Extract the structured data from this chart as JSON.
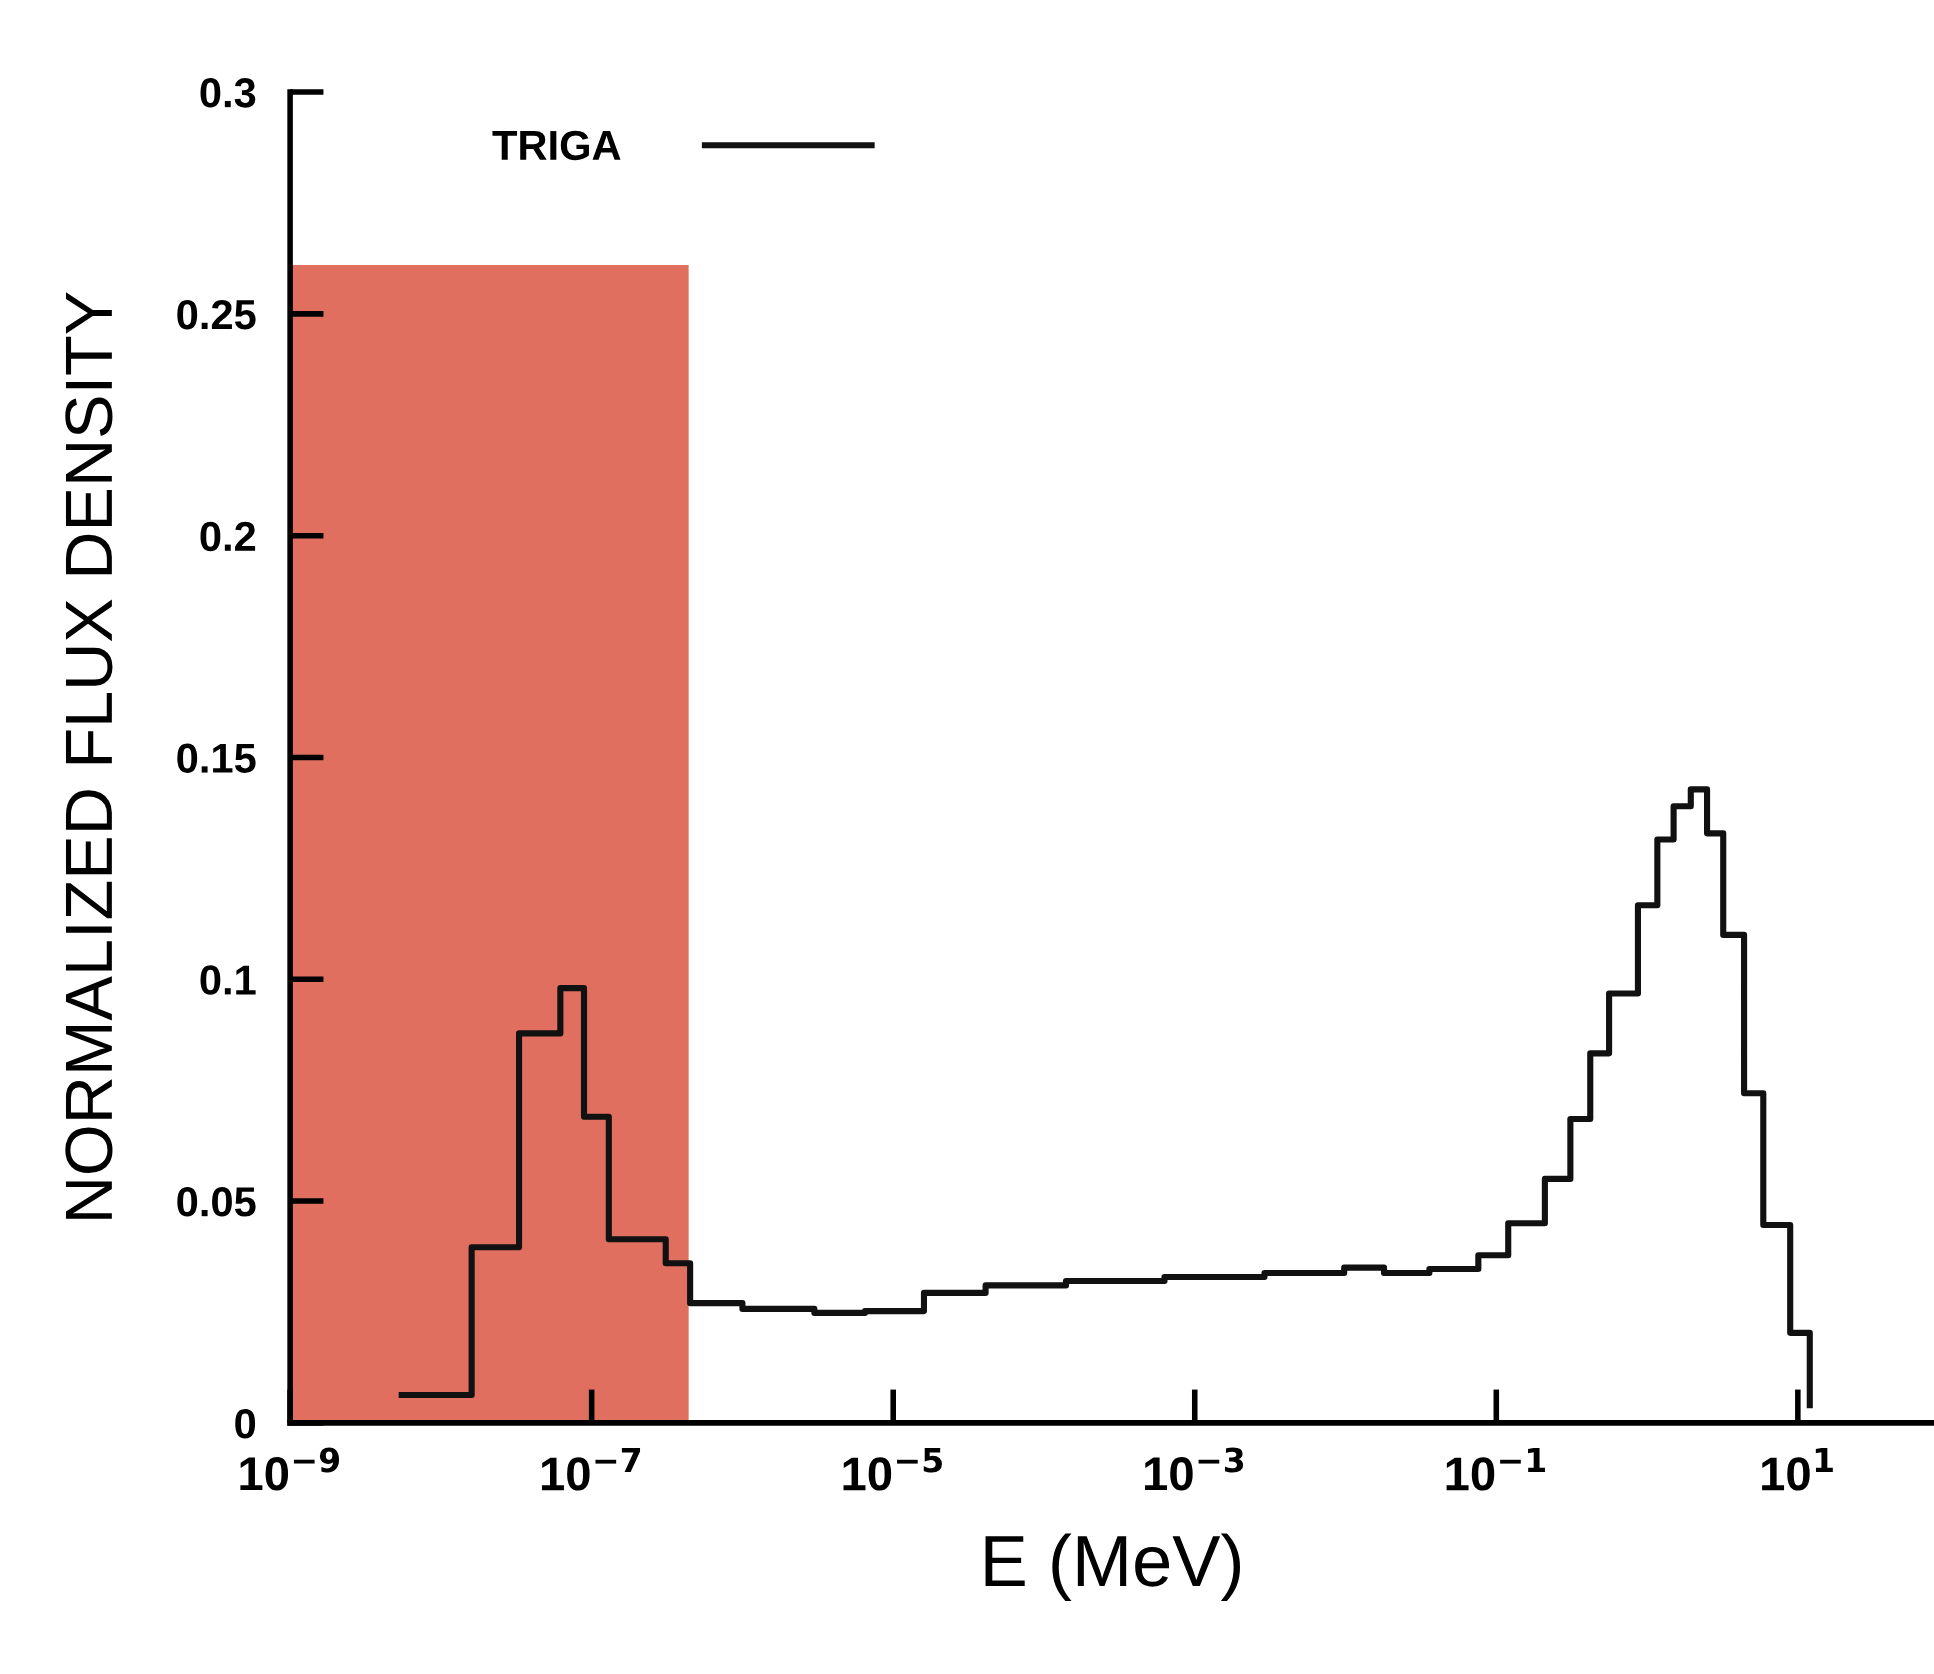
{
  "chart_data": {
    "type": "step",
    "xlabel": "E (MeV)",
    "ylabel": "NORMALIZED FLUX DENSITY",
    "log": "x",
    "xlim": [
      1e-09,
      80
    ],
    "ylim": [
      0,
      0.3
    ],
    "xticks": [
      {
        "value": 1e-09,
        "label": "10$^{−9}$"
      },
      {
        "value": 1e-07,
        "label": "10$^{−7}$"
      },
      {
        "value": 1e-05,
        "label": "10$^{−5}$"
      },
      {
        "value": 0.001,
        "label": "10$^{−3}$"
      },
      {
        "value": 0.1,
        "label": "10$^{−1}$"
      },
      {
        "value": 10,
        "label": "10$^{1}$"
      }
    ],
    "yticks": [
      0,
      0.05,
      0.1,
      0.15,
      0.2,
      0.25,
      0.3
    ],
    "legend": "top left",
    "grid": false,
    "series": [
      {
        "type": "area",
        "color": "#e06f60",
        "x": [
          1e-09,
          4.4e-07
        ],
        "values": [
          0.261,
          0.261
        ]
      },
      {
        "name": "TRIGA",
        "color": "#111111",
        "x": [
          5.5e-09,
          1.6e-08,
          3.3e-08,
          6.2e-08,
          8.9e-08,
          1.3e-07,
          3.1e-07,
          4.5e-07,
          1e-06,
          3e-06,
          6.5e-06,
          1.6e-05,
          4.1e-05,
          0.00014,
          0.00063,
          0.0029,
          0.0098,
          0.018,
          0.036,
          0.076,
          0.12,
          0.21,
          0.31,
          0.42,
          0.56,
          0.87,
          1.17,
          1.5,
          1.95,
          2.5,
          3.2,
          4.4,
          5.9,
          8.9,
          12
        ],
        "values": [
          0.0063,
          0.0396,
          0.0878,
          0.098,
          0.069,
          0.0414,
          0.036,
          0.027,
          0.0257,
          0.0248,
          0.0252,
          0.0293,
          0.031,
          0.032,
          0.0329,
          0.0338,
          0.035,
          0.0338,
          0.0347,
          0.0378,
          0.045,
          0.055,
          0.0685,
          0.0833,
          0.0968,
          0.1167,
          0.1315,
          0.139,
          0.1428,
          0.1329,
          0.11,
          0.0743,
          0.0446,
          0.0203,
          0.004
        ]
      }
    ]
  }
}
